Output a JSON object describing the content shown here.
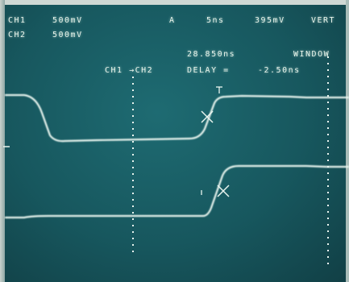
{
  "screen": {
    "ch1": {
      "label": "CH1",
      "scale": "500mV"
    },
    "ch2": {
      "label": "CH2",
      "scale": "500mV"
    },
    "trigger": {
      "mode": "A",
      "timebase": "5ns",
      "level": "395mV",
      "mode2": "VERT"
    },
    "cursor_readout": {
      "time": "28.850ns",
      "window": "WINDOW"
    },
    "measurement": {
      "label": "CH1 →CH2",
      "delay_label": "DELAY =",
      "delay_value": "-2.50ns"
    }
  },
  "colors": {
    "screen": "#17575e",
    "trace": "#e9f5ef",
    "text": "#e7f3ea"
  }
}
